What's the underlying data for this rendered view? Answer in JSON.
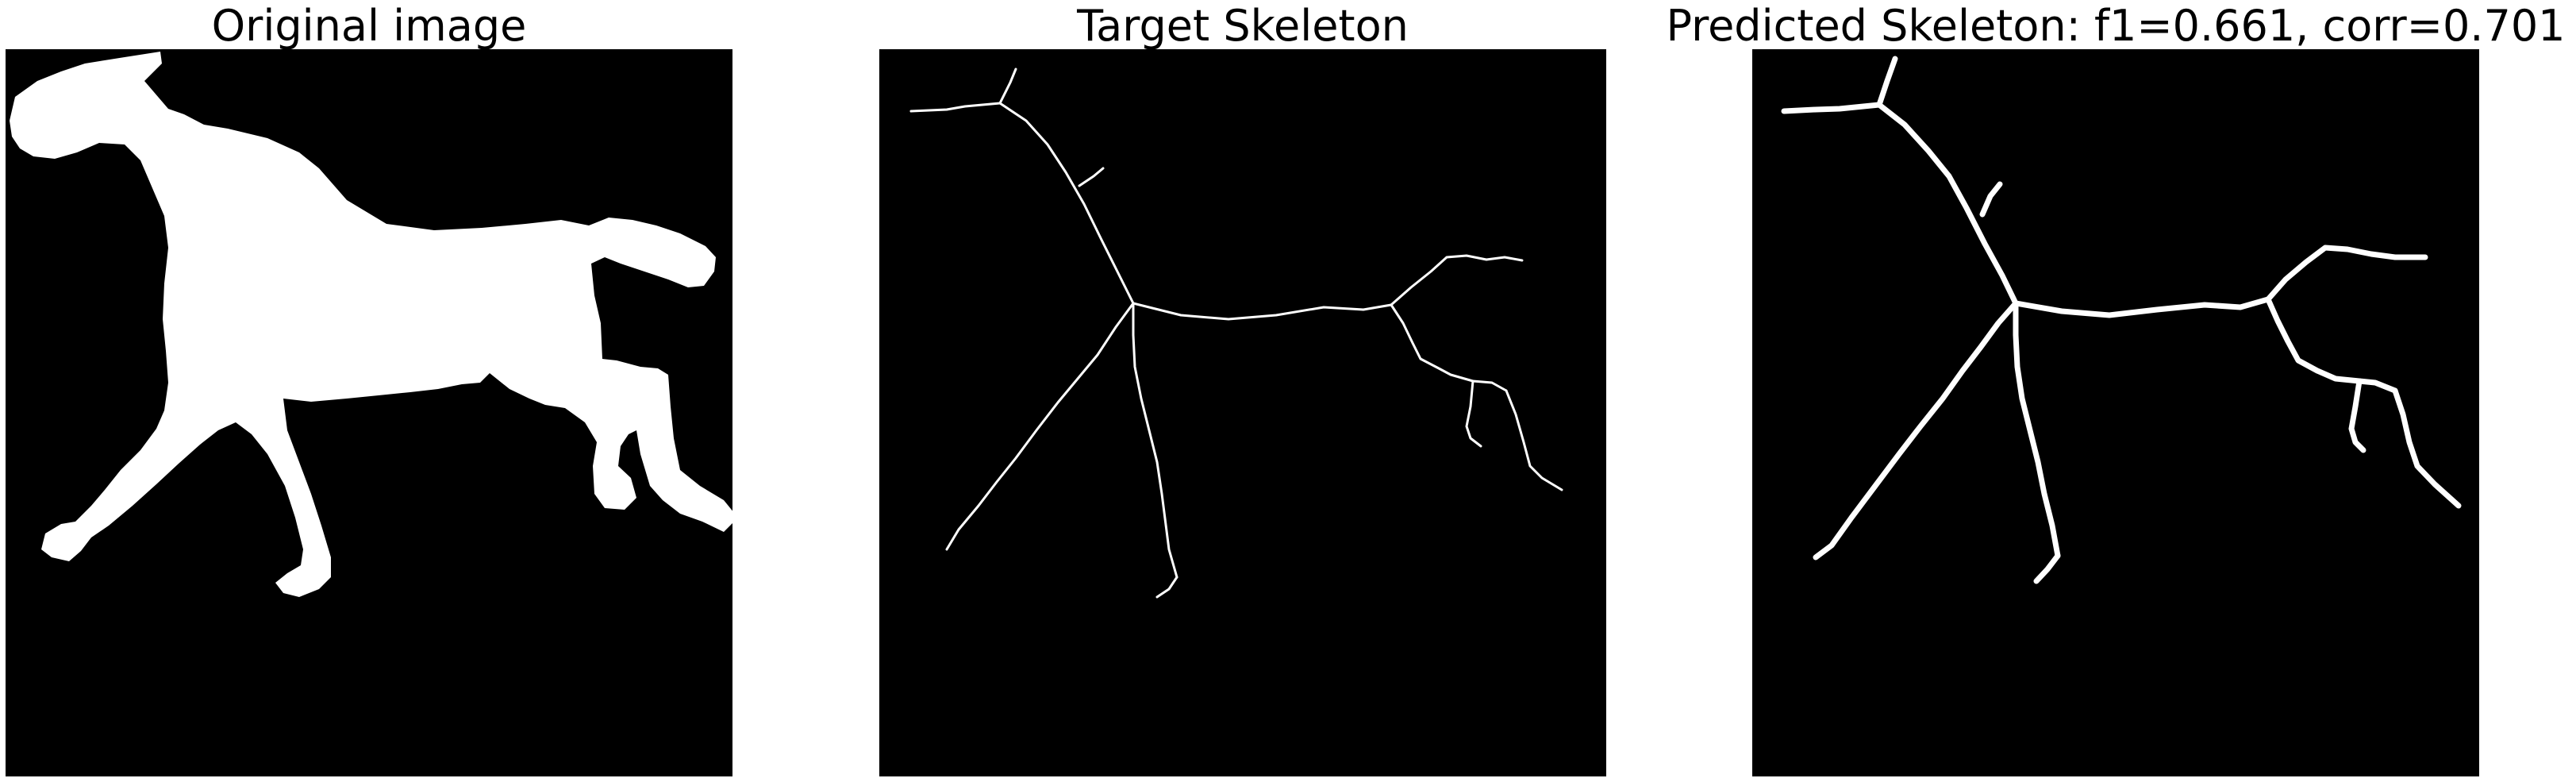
{
  "panels": [
    {
      "title": "Original image"
    },
    {
      "title": "Target Skeleton"
    },
    {
      "title": "Predicted Skeleton: f1=0.661, corr=0.701"
    }
  ]
}
